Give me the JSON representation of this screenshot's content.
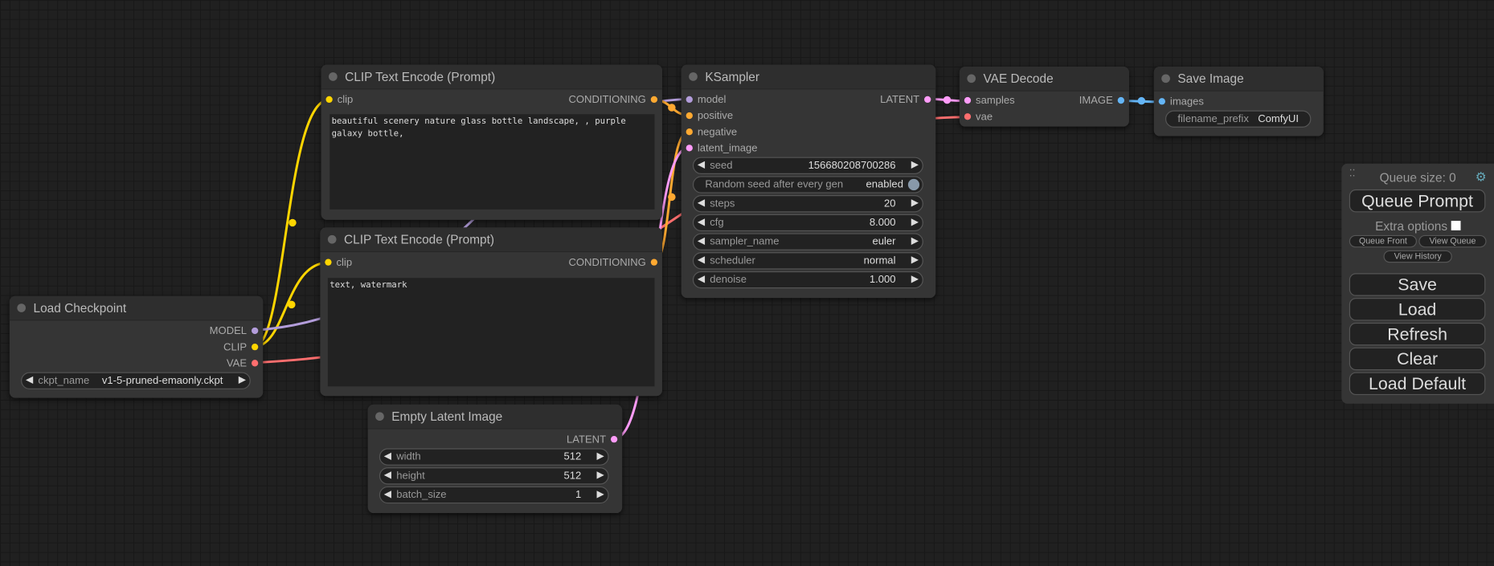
{
  "colors": {
    "clip": "#ffd500",
    "model": "#b39ddb",
    "vae": "#ff6e6e",
    "conditioning": "#ffa931",
    "latent": "#ff9cf9",
    "image": "#64b5f6"
  },
  "nodes": {
    "clip_pos": {
      "title": "CLIP Text Encode (Prompt)",
      "input": "clip",
      "output": "CONDITIONING",
      "text": "beautiful scenery nature glass bottle landscape, , purple galaxy bottle,"
    },
    "clip_neg": {
      "title": "CLIP Text Encode (Prompt)",
      "input": "clip",
      "output": "CONDITIONING",
      "text": "text, watermark"
    },
    "checkpoint": {
      "title": "Load Checkpoint",
      "outputs": [
        "MODEL",
        "CLIP",
        "VAE"
      ],
      "widget": {
        "name": "ckpt_name",
        "value": "v1-5-pruned-emaonly.ckpt"
      }
    },
    "latent": {
      "title": "Empty Latent Image",
      "output": "LATENT",
      "widgets": [
        {
          "name": "width",
          "value": "512"
        },
        {
          "name": "height",
          "value": "512"
        },
        {
          "name": "batch_size",
          "value": "1"
        }
      ]
    },
    "ksampler": {
      "title": "KSampler",
      "inputs": [
        "model",
        "positive",
        "negative",
        "latent_image"
      ],
      "output": "LATENT",
      "seed": {
        "name": "seed",
        "value": "156680208700286"
      },
      "random_seed": {
        "name": "Random seed after every gen",
        "value": "enabled"
      },
      "widgets": [
        {
          "name": "steps",
          "value": "20"
        },
        {
          "name": "cfg",
          "value": "8.000"
        },
        {
          "name": "sampler_name",
          "value": "euler"
        },
        {
          "name": "scheduler",
          "value": "normal"
        },
        {
          "name": "denoise",
          "value": "1.000"
        }
      ]
    },
    "vae_decode": {
      "title": "VAE Decode",
      "inputs": [
        "samples",
        "vae"
      ],
      "output": "IMAGE"
    },
    "save_image": {
      "title": "Save Image",
      "input": "images",
      "widget": {
        "name": "filename_prefix",
        "value": "ComfyUI"
      }
    }
  },
  "panel": {
    "queue_size": "Queue size: 0",
    "queue_prompt": "Queue Prompt",
    "extra_options": "Extra options",
    "queue_front": "Queue Front",
    "view_queue": "View Queue",
    "view_history": "View History",
    "save": "Save",
    "load": "Load",
    "refresh": "Refresh",
    "clear": "Clear",
    "load_default": "Load Default"
  }
}
